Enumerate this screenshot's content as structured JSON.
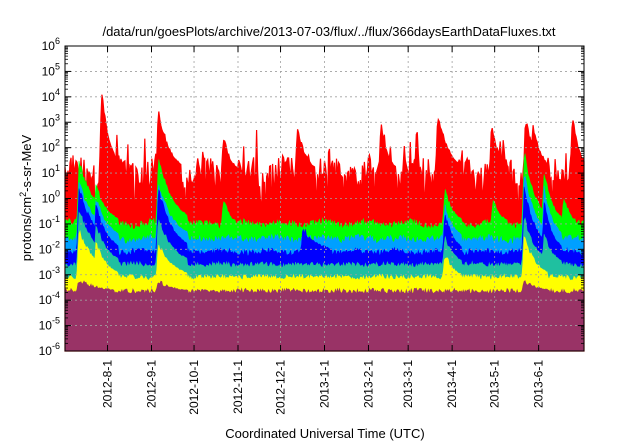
{
  "chart_data": {
    "type": "area",
    "title": "/data/run/goesPlots/archive/2013-07-03/flux/../flux/366daysEarthDataFluxes.txt",
    "xlabel": "Coordinated Universal Time (UTC)",
    "ylabel": "protons/cm²-s-sr-MeV",
    "ylabel_base": "protons/cm",
    "ylabel_sup": "2",
    "ylabel_rest": "-s-sr-MeV",
    "y_scale": "log",
    "ylim": [
      1e-06,
      1000000.0
    ],
    "y_tick_exponents": [
      -6,
      -5,
      -4,
      -3,
      -2,
      -1,
      0,
      1,
      2,
      3,
      4,
      5,
      6
    ],
    "xlim": [
      "2012-07-02",
      "2013-07-03"
    ],
    "x_ticks": [
      "2012-8-1",
      "2012-9-1",
      "2012-10-1",
      "2012-11-1",
      "2012-12-1",
      "2013-1-1",
      "2013-2-1",
      "2013-3-1",
      "2013-4-1",
      "2013-5-1",
      "2013-6-1"
    ],
    "grid": true,
    "legend": "none",
    "series": [
      {
        "color": "#ff0000",
        "baseline_log": 1.0,
        "amp": 0.6,
        "noise": 0.55,
        "floor_log": -1.2,
        "events": [
          [
            26,
            4.1,
            6
          ],
          [
            66,
            3.4,
            8
          ],
          [
            70,
            2.5,
            6
          ],
          [
            112,
            2.4,
            5
          ],
          [
            164,
            2.8,
            6
          ],
          [
            223,
            2.9,
            5
          ],
          [
            263,
            3.3,
            8
          ],
          [
            301,
            2.8,
            6
          ],
          [
            325,
            3.1,
            7
          ],
          [
            330,
            2.9,
            6
          ],
          [
            358,
            3.2,
            5
          ]
        ]
      },
      {
        "color": "#00ff00",
        "baseline_log": -1.0,
        "amp": 0.15,
        "noise": 0.15,
        "floor_log": -1.3,
        "events": [
          [
            10,
            1.4,
            12
          ],
          [
            22,
            0.5,
            8
          ],
          [
            66,
            1.6,
            10
          ],
          [
            112,
            0.0,
            4
          ],
          [
            268,
            0.3,
            6
          ],
          [
            302,
            0.0,
            5
          ],
          [
            324,
            1.8,
            8
          ],
          [
            338,
            1.1,
            6
          ],
          [
            352,
            0.1,
            4
          ]
        ]
      },
      {
        "color": "#00a0ff",
        "baseline_log": -1.6,
        "amp": 0.1,
        "noise": 0.15,
        "floor_log": -2.0,
        "events": [
          [
            10,
            0.6,
            12
          ],
          [
            22,
            0.0,
            8
          ],
          [
            66,
            0.6,
            10
          ],
          [
            268,
            -0.3,
            6
          ],
          [
            324,
            1.0,
            8
          ],
          [
            338,
            0.4,
            6
          ]
        ]
      },
      {
        "color": "#0000ff",
        "baseline_log": -2.1,
        "amp": 0.1,
        "noise": 0.12,
        "floor_log": -2.4,
        "events": [
          [
            10,
            0.4,
            12
          ],
          [
            22,
            -0.3,
            8
          ],
          [
            66,
            0.4,
            10
          ],
          [
            168,
            -1.2,
            10
          ],
          [
            268,
            -0.6,
            6
          ],
          [
            324,
            0.5,
            8
          ],
          [
            338,
            -0.2,
            6
          ]
        ]
      },
      {
        "color": "#1fc0a0",
        "baseline_log": -2.6,
        "amp": 0.05,
        "noise": 0.1,
        "floor_log": -2.9,
        "events": [
          [
            10,
            -0.5,
            12
          ],
          [
            22,
            -1.0,
            8
          ],
          [
            66,
            -0.8,
            10
          ],
          [
            268,
            -1.5,
            6
          ],
          [
            324,
            -0.8,
            8
          ],
          [
            338,
            -1.4,
            6
          ]
        ]
      },
      {
        "color": "#ffff00",
        "baseline_log": -3.1,
        "amp": 0.05,
        "noise": 0.1,
        "floor_log": -3.3,
        "events": [
          [
            10,
            -1.3,
            12
          ],
          [
            22,
            -1.8,
            8
          ],
          [
            66,
            -1.8,
            10
          ],
          [
            268,
            -2.2,
            6
          ],
          [
            324,
            -1.5,
            8
          ]
        ]
      },
      {
        "color": "#993366",
        "baseline_log": -3.65,
        "amp": 0.05,
        "noise": 0.1,
        "floor_log": -3.75,
        "events": [
          [
            10,
            -3.2,
            12
          ],
          [
            66,
            -3.3,
            10
          ],
          [
            324,
            -3.2,
            8
          ]
        ]
      },
      {
        "color": "#993366",
        "baseline_log": -4.9,
        "amp": 0.05,
        "noise": 0.05,
        "floor_log": -5.0,
        "events": []
      }
    ]
  }
}
